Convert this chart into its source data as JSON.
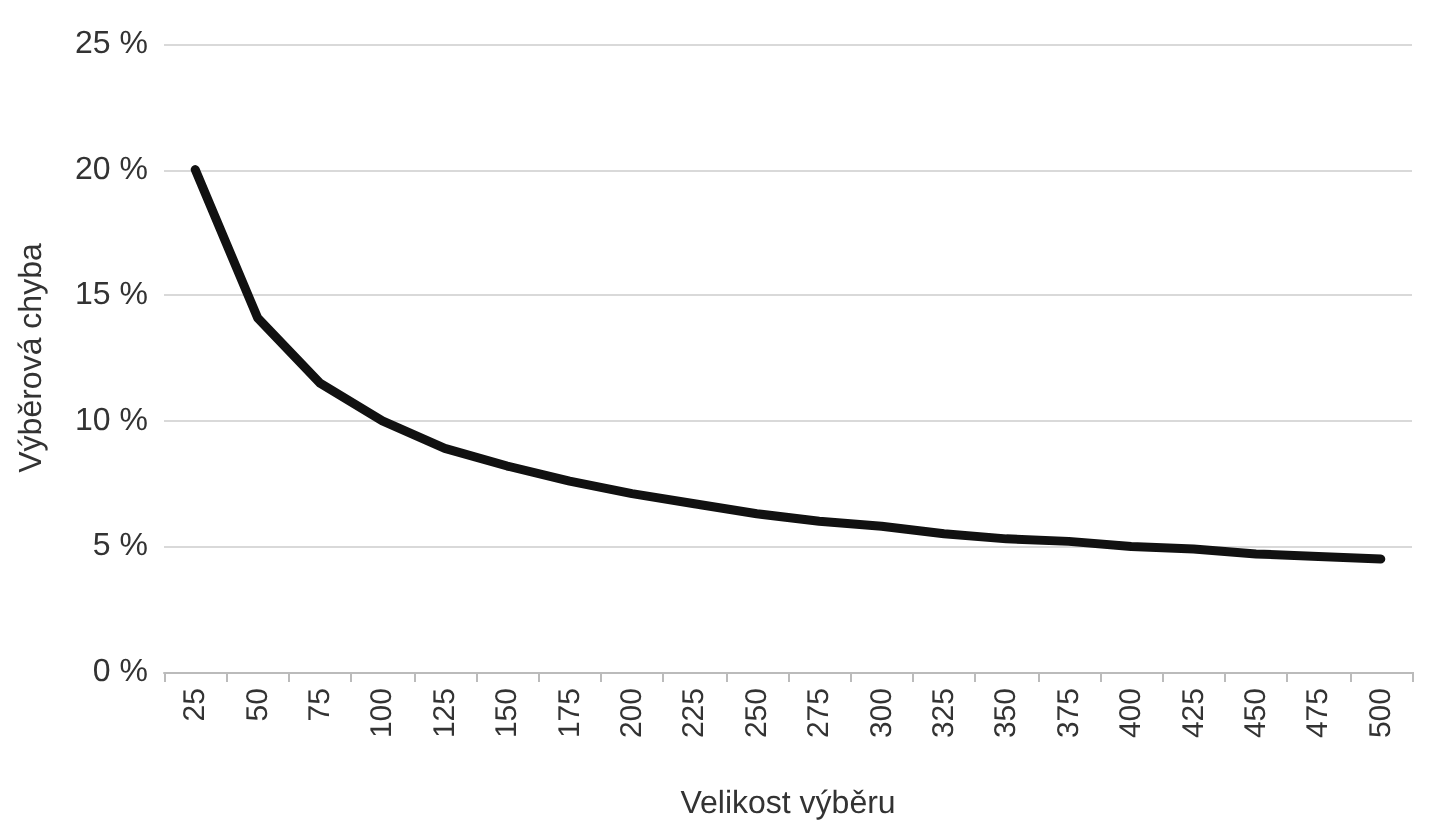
{
  "chart_data": {
    "type": "line",
    "xlabel": "Velikost výběru",
    "ylabel": "Výběrová chyba",
    "categories": [
      "25",
      "50",
      "75",
      "100",
      "125",
      "150",
      "175",
      "200",
      "225",
      "250",
      "275",
      "300",
      "325",
      "350",
      "375",
      "400",
      "425",
      "450",
      "475",
      "500"
    ],
    "series": [
      {
        "color": "#111111",
        "values": [
          20,
          14.1,
          11.5,
          10,
          8.9,
          8.2,
          7.6,
          7.1,
          6.7,
          6.3,
          6.0,
          5.8,
          5.5,
          5.3,
          5.2,
          5.0,
          4.9,
          4.7,
          4.6,
          4.5
        ]
      }
    ],
    "ylim": [
      0,
      25
    ],
    "yticks": [
      {
        "value": 0,
        "label": "0 %"
      },
      {
        "value": 5,
        "label": "5 %"
      },
      {
        "value": 10,
        "label": "10 %"
      },
      {
        "value": 15,
        "label": "15 %"
      },
      {
        "value": 20,
        "label": "20 %"
      },
      {
        "value": 25,
        "label": "25 %"
      }
    ],
    "grid": "y",
    "marker": "none",
    "line_style": "solid"
  }
}
